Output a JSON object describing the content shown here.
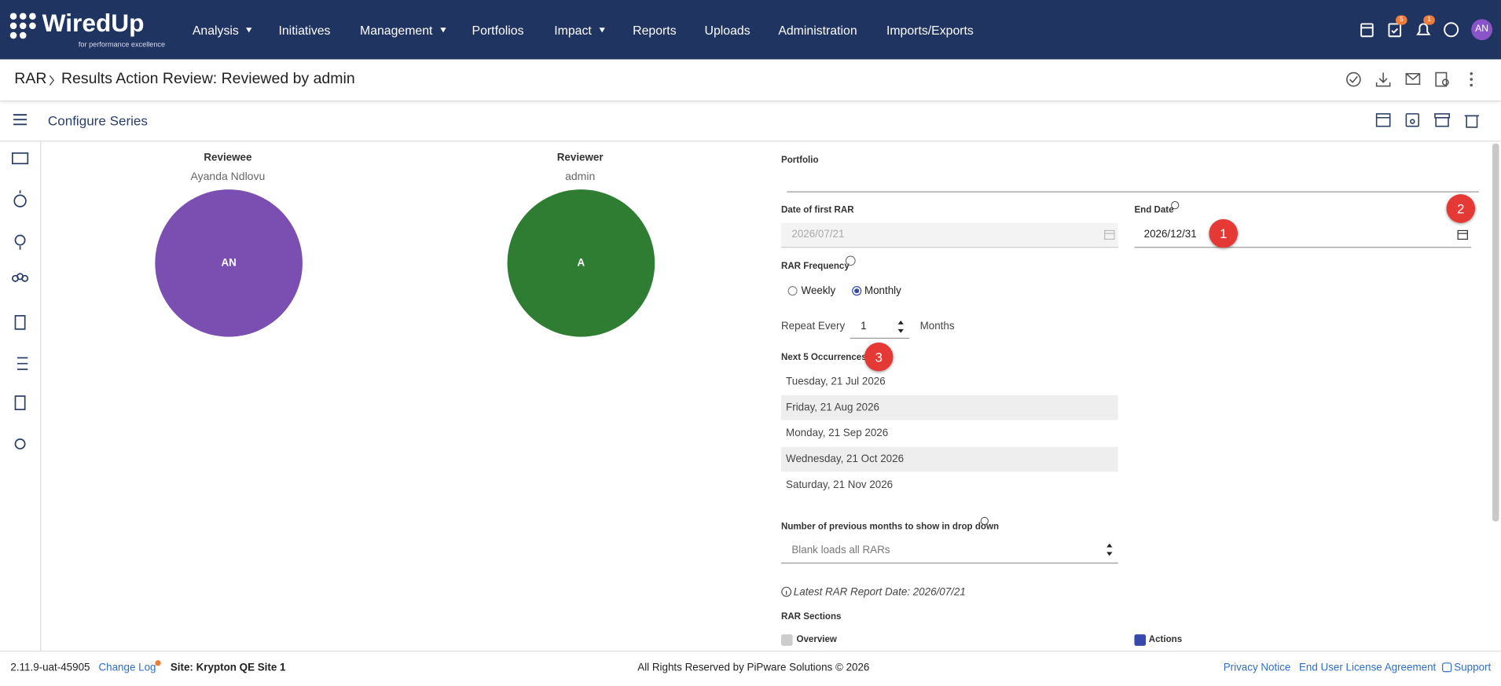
{
  "header": {
    "logo": "WiredUp",
    "tagline": "for performance excellence",
    "nav": [
      "Analysis",
      "Initiatives",
      "Management",
      "Portfolios",
      "Impact",
      "Reports",
      "Uploads",
      "Administration",
      "Imports/Exports"
    ],
    "badges": [
      "5",
      "1"
    ],
    "avatar": "AN"
  },
  "breadcrumb": {
    "root": "RAR",
    "title": "Results Action Review: Reviewed by admin"
  },
  "toolbar": {
    "title": "Configure Series"
  },
  "people": {
    "reviewee": {
      "label": "Reviewee",
      "name": "Ayanda Ndlovu",
      "initials": "AN"
    },
    "reviewer": {
      "label": "Reviewer",
      "name": "admin",
      "initials": "A"
    }
  },
  "form": {
    "portfolio_label": "Portfolio",
    "first_date": {
      "label": "Date of first RAR",
      "value": "2026/07/21"
    },
    "end_date": {
      "label": "End Date",
      "value": "2026/12/31"
    },
    "frequency": {
      "label": "RAR Frequency",
      "options": [
        "Weekly",
        "Monthly"
      ]
    },
    "repeat": {
      "label": "Repeat Every",
      "value": "1",
      "unit": "Months"
    },
    "occurrences": {
      "label": "Next 5 Occurrences",
      "items": [
        "Tuesday, 21 Jul 2026",
        "Friday, 21 Aug 2026",
        "Monday, 21 Sep 2026",
        "Wednesday, 21 Oct 2026",
        "Saturday, 21 Nov 2026"
      ]
    },
    "months": {
      "label": "Number of previous months to show in drop down",
      "placeholder": "Blank loads all RARs"
    },
    "latest_report": "Latest RAR Report Date: 2026/07/21",
    "sections": {
      "label": "RAR Sections",
      "items": [
        "Overview",
        "Actions"
      ]
    }
  },
  "markers": [
    "1",
    "2",
    "3"
  ],
  "footer": {
    "version": "2.11.9-uat-45905",
    "change_log": "Change Log",
    "site": "Site: Krypton QE Site 1",
    "copyright": "All Rights Reserved by PiPware Solutions © 2026",
    "links": [
      "Privacy Notice",
      "End User License Agreement",
      "Support"
    ]
  }
}
